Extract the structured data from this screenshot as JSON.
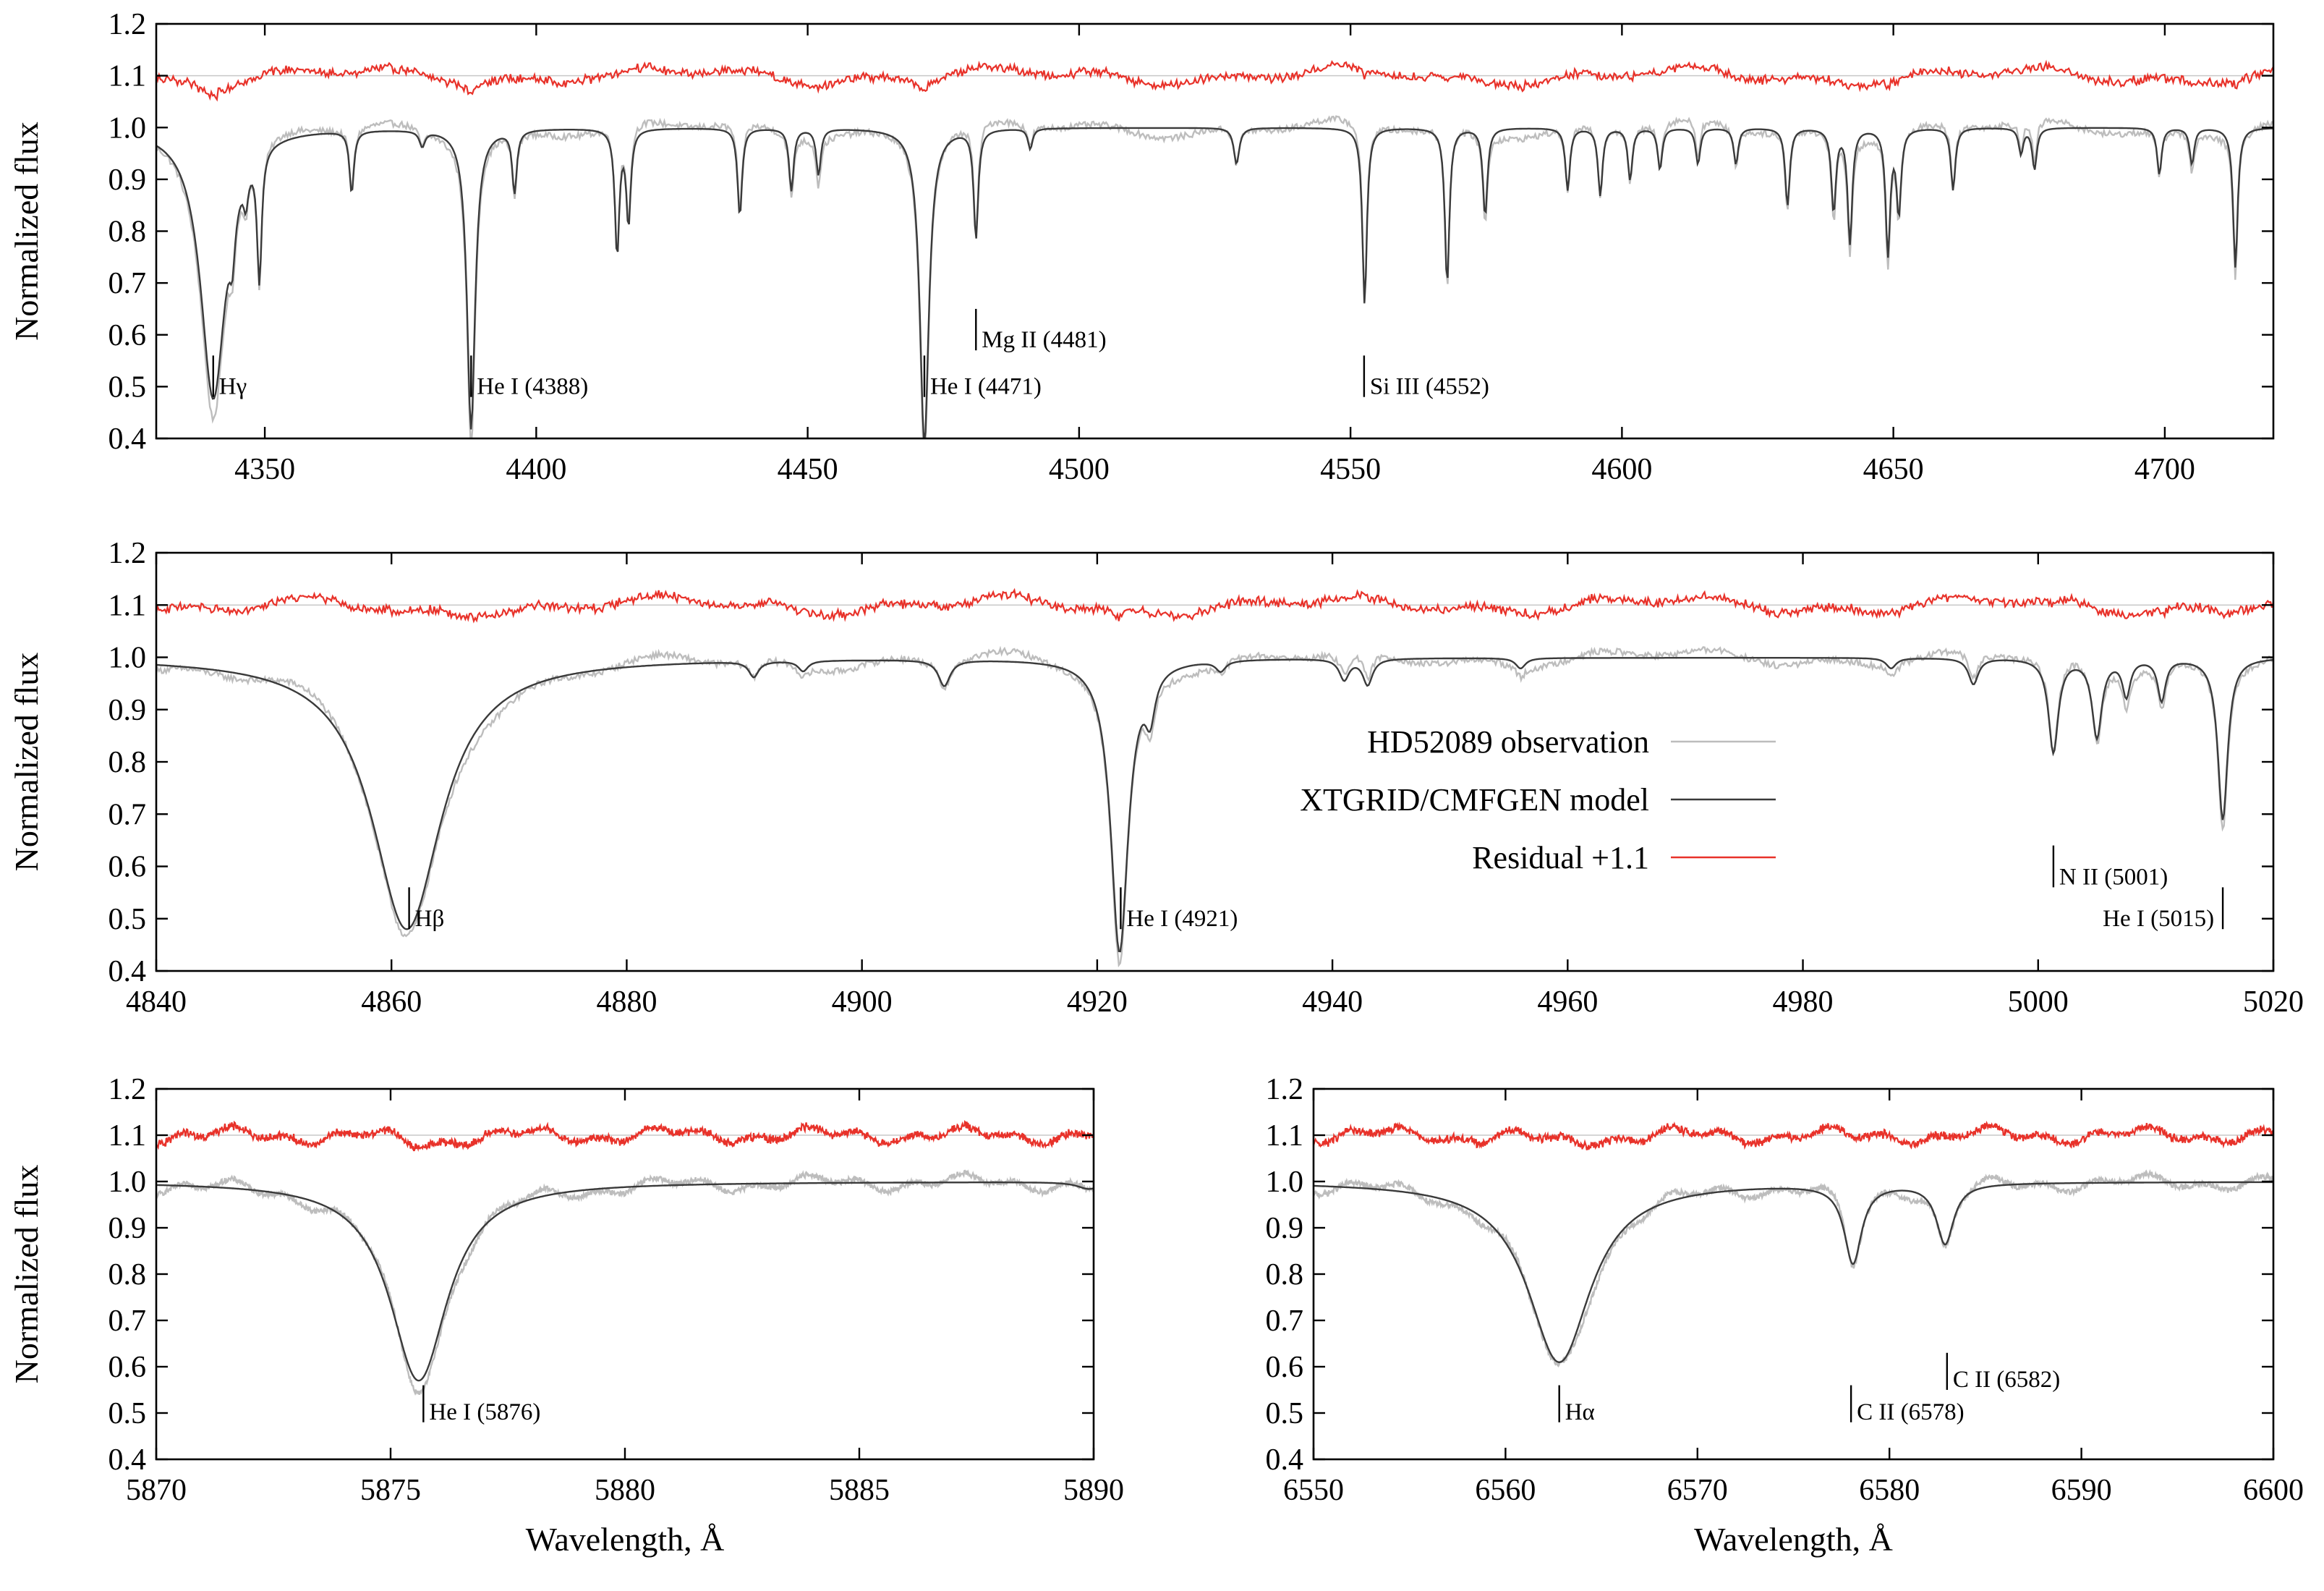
{
  "figure": {
    "ylabel": "Normalized flux",
    "xlabel": "Wavelength, Å",
    "legend": {
      "entries": [
        {
          "label": "HD52089 observation",
          "color": "#bdbdbd"
        },
        {
          "label": "XTGRID/CMFGEN model",
          "color": "#3a3a3a"
        },
        {
          "label": "Residual +1.1",
          "color": "#e8322a"
        }
      ],
      "placement": "inside panel 2, middle-right"
    },
    "colors": {
      "observation": "#bdbdbd",
      "model": "#3a3a3a",
      "residual": "#e8322a",
      "reference": "#c8c8c8"
    }
  },
  "chart_data": [
    {
      "type": "line",
      "panel": "top",
      "xlim": [
        4330,
        4720
      ],
      "ylim": [
        0.4,
        1.2
      ],
      "xticks": [
        4350,
        4400,
        4450,
        4500,
        4550,
        4600,
        4650,
        4700
      ],
      "yticks": [
        0.4,
        0.5,
        0.6,
        0.7,
        0.8,
        0.9,
        1.0,
        1.1,
        1.2
      ],
      "xlabel": "",
      "ylabel": "Normalized flux",
      "residual_offset": 1.1,
      "lines": [
        {
          "center": 4340.5,
          "depth": 0.52,
          "width": 2.8
        },
        {
          "center": 4344,
          "depth": 0.09,
          "width": 0.6
        },
        {
          "center": 4346.5,
          "depth": 0.06,
          "width": 0.5
        },
        {
          "center": 4349,
          "depth": 0.25,
          "width": 0.5
        },
        {
          "center": 4366,
          "depth": 0.12,
          "width": 0.5
        },
        {
          "center": 4379,
          "depth": 0.03,
          "width": 0.6
        },
        {
          "center": 4388,
          "depth": 0.58,
          "width": 0.9
        },
        {
          "center": 4396,
          "depth": 0.12,
          "width": 0.5
        },
        {
          "center": 4414.9,
          "depth": 0.24,
          "width": 0.5
        },
        {
          "center": 4417,
          "depth": 0.18,
          "width": 0.5
        },
        {
          "center": 4437.5,
          "depth": 0.17,
          "width": 0.5
        },
        {
          "center": 4447,
          "depth": 0.12,
          "width": 0.5
        },
        {
          "center": 4452,
          "depth": 0.09,
          "width": 0.5
        },
        {
          "center": 4471.5,
          "depth": 0.61,
          "width": 1.0
        },
        {
          "center": 4481,
          "depth": 0.21,
          "width": 0.5
        },
        {
          "center": 4491,
          "depth": 0.04,
          "width": 0.5
        },
        {
          "center": 4529,
          "depth": 0.07,
          "width": 0.6
        },
        {
          "center": 4552.6,
          "depth": 0.34,
          "width": 0.5
        },
        {
          "center": 4567.8,
          "depth": 0.3,
          "width": 0.5
        },
        {
          "center": 4574.8,
          "depth": 0.17,
          "width": 0.5
        },
        {
          "center": 4590,
          "depth": 0.12,
          "width": 0.5
        },
        {
          "center": 4596,
          "depth": 0.13,
          "width": 0.5
        },
        {
          "center": 4601.5,
          "depth": 0.1,
          "width": 0.5
        },
        {
          "center": 4607,
          "depth": 0.08,
          "width": 0.5
        },
        {
          "center": 4614,
          "depth": 0.07,
          "width": 0.5
        },
        {
          "center": 4621,
          "depth": 0.07,
          "width": 0.5
        },
        {
          "center": 4630.5,
          "depth": 0.15,
          "width": 0.5
        },
        {
          "center": 4639,
          "depth": 0.16,
          "width": 0.5
        },
        {
          "center": 4642,
          "depth": 0.22,
          "width": 0.5
        },
        {
          "center": 4649,
          "depth": 0.24,
          "width": 0.5
        },
        {
          "center": 4651,
          "depth": 0.16,
          "width": 0.5
        },
        {
          "center": 4661,
          "depth": 0.12,
          "width": 0.5
        },
        {
          "center": 4673.5,
          "depth": 0.05,
          "width": 0.5
        },
        {
          "center": 4676,
          "depth": 0.08,
          "width": 0.5
        },
        {
          "center": 4699,
          "depth": 0.09,
          "width": 0.5
        },
        {
          "center": 4705,
          "depth": 0.07,
          "width": 0.5
        },
        {
          "center": 4713,
          "depth": 0.27,
          "width": 0.5
        }
      ],
      "annotations": [
        {
          "label": "Hγ",
          "x": 4340.5,
          "y_bottom": 0.48,
          "y_top": 0.56
        },
        {
          "label": "He I (4388)",
          "x": 4388,
          "y_bottom": 0.48,
          "y_top": 0.56
        },
        {
          "label": "He I (4471)",
          "x": 4471.5,
          "y_bottom": 0.48,
          "y_top": 0.56
        },
        {
          "label": "Mg II (4481)",
          "x": 4481,
          "y_bottom": 0.57,
          "y_top": 0.65
        },
        {
          "label": "Si III (4552)",
          "x": 4552.5,
          "y_bottom": 0.48,
          "y_top": 0.56
        }
      ]
    },
    {
      "type": "line",
      "panel": "middle",
      "xlim": [
        4840,
        5020
      ],
      "ylim": [
        0.4,
        1.2
      ],
      "xticks": [
        4840,
        4860,
        4880,
        4900,
        4920,
        4940,
        4960,
        4980,
        5000,
        5020
      ],
      "yticks": [
        0.4,
        0.5,
        0.6,
        0.7,
        0.8,
        0.9,
        1.0,
        1.1,
        1.2
      ],
      "xlabel": "",
      "ylabel": "Normalized flux",
      "residual_offset": 1.1,
      "lines": [
        {
          "center": 4861.3,
          "depth": 0.52,
          "width": 3.6
        },
        {
          "center": 4890.8,
          "depth": 0.03,
          "width": 0.5
        },
        {
          "center": 4895,
          "depth": 0.02,
          "width": 0.5
        },
        {
          "center": 4907,
          "depth": 0.05,
          "width": 0.6
        },
        {
          "center": 4921.9,
          "depth": 0.56,
          "width": 0.9
        },
        {
          "center": 4924.5,
          "depth": 0.08,
          "width": 0.5
        },
        {
          "center": 4930.5,
          "depth": 0.02,
          "width": 0.5
        },
        {
          "center": 4941,
          "depth": 0.04,
          "width": 0.5
        },
        {
          "center": 4943,
          "depth": 0.05,
          "width": 0.5
        },
        {
          "center": 4956,
          "depth": 0.02,
          "width": 0.5
        },
        {
          "center": 4987.5,
          "depth": 0.02,
          "width": 0.5
        },
        {
          "center": 4994.5,
          "depth": 0.05,
          "width": 0.5
        },
        {
          "center": 5001.3,
          "depth": 0.18,
          "width": 0.5
        },
        {
          "center": 5005,
          "depth": 0.15,
          "width": 0.5
        },
        {
          "center": 5007.5,
          "depth": 0.07,
          "width": 0.4
        },
        {
          "center": 5010.5,
          "depth": 0.08,
          "width": 0.4
        },
        {
          "center": 5015.7,
          "depth": 0.31,
          "width": 0.5
        }
      ],
      "annotations": [
        {
          "label": "Hβ",
          "x": 4861.5,
          "y_bottom": 0.48,
          "y_top": 0.56
        },
        {
          "label": "He I (4921)",
          "x": 4922,
          "y_bottom": 0.48,
          "y_top": 0.56
        },
        {
          "label": "N II (5001)",
          "x": 5001.3,
          "y_bottom": 0.56,
          "y_top": 0.64
        },
        {
          "label": "He I (5015)",
          "x": 5015.7,
          "y_bottom": 0.48,
          "y_top": 0.56
        }
      ]
    },
    {
      "type": "line",
      "panel": "bottom-left",
      "xlim": [
        5870,
        5890
      ],
      "ylim": [
        0.4,
        1.2
      ],
      "xticks": [
        5870,
        5875,
        5880,
        5885,
        5890
      ],
      "yticks": [
        0.4,
        0.5,
        0.6,
        0.7,
        0.8,
        0.9,
        1.0,
        1.1,
        1.2
      ],
      "xlabel": "Wavelength, Å",
      "ylabel": "Normalized flux",
      "residual_offset": 1.1,
      "lines": [
        {
          "center": 5875.6,
          "depth": 0.43,
          "width": 0.75
        },
        {
          "center": 5889.9,
          "depth": 0.015,
          "width": 0.3
        }
      ],
      "annotations": [
        {
          "label": "He I (5876)",
          "x": 5875.7,
          "y_bottom": 0.48,
          "y_top": 0.56
        }
      ]
    },
    {
      "type": "line",
      "panel": "bottom-right",
      "xlim": [
        6550,
        6600
      ],
      "ylim": [
        0.4,
        1.2
      ],
      "xticks": [
        6550,
        6560,
        6570,
        6580,
        6590,
        6600
      ],
      "yticks": [
        0.4,
        0.5,
        0.6,
        0.7,
        0.8,
        0.9,
        1.0,
        1.1,
        1.2
      ],
      "xlabel": "Wavelength, Å",
      "ylabel": "",
      "residual_offset": 1.1,
      "lines": [
        {
          "center": 6562.8,
          "depth": 0.39,
          "width": 2.0
        },
        {
          "center": 6578.1,
          "depth": 0.17,
          "width": 0.55
        },
        {
          "center": 6582.9,
          "depth": 0.13,
          "width": 0.55
        }
      ],
      "annotations": [
        {
          "label": "Hα",
          "x": 6562.8,
          "y_bottom": 0.48,
          "y_top": 0.56
        },
        {
          "label": "C II (6578)",
          "x": 6578,
          "y_bottom": 0.48,
          "y_top": 0.56
        },
        {
          "label": "C II (6582)",
          "x": 6583,
          "y_bottom": 0.55,
          "y_top": 0.63
        }
      ]
    }
  ]
}
